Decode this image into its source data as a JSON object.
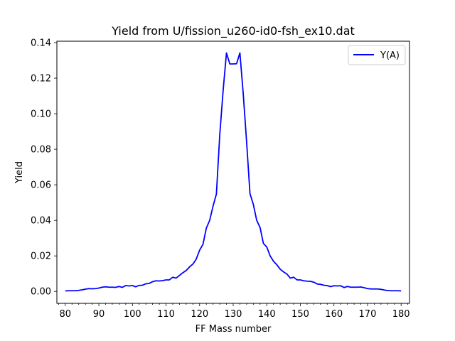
{
  "chart_data": {
    "type": "line",
    "title": "Yield from  U/fission_u260-id0-fsh_ex10.dat",
    "xlabel": "FF Mass number",
    "ylabel": "Yield",
    "xlim": [
      77.5,
      182.5
    ],
    "ylim": [
      -0.0067,
      0.1408
    ],
    "x_ticks": [
      80,
      90,
      100,
      110,
      120,
      130,
      140,
      150,
      160,
      170,
      180
    ],
    "y_ticks": [
      0.0,
      0.02,
      0.04,
      0.06,
      0.08,
      0.1,
      0.12,
      0.14
    ],
    "y_tick_labels": [
      "0.00",
      "0.02",
      "0.04",
      "0.06",
      "0.08",
      "0.10",
      "0.12",
      "0.14"
    ],
    "x_minor_step": 2,
    "grid": false,
    "legend_position": "upper right",
    "series": [
      {
        "name": "Y(A)",
        "color": "#0000ff",
        "x": [
          80,
          81,
          82,
          83,
          84,
          85,
          86,
          87,
          88,
          89,
          90,
          91,
          92,
          93,
          94,
          95,
          96,
          97,
          98,
          99,
          100,
          101,
          102,
          103,
          104,
          105,
          106,
          107,
          108,
          109,
          110,
          111,
          112,
          113,
          114,
          115,
          116,
          117,
          118,
          119,
          120,
          121,
          122,
          123,
          124,
          125,
          126,
          127,
          128,
          129,
          130,
          131,
          132,
          133,
          134,
          135,
          136,
          137,
          138,
          139,
          140,
          141,
          142,
          143,
          144,
          145,
          146,
          147,
          148,
          149,
          150,
          151,
          152,
          153,
          154,
          155,
          156,
          157,
          158,
          159,
          160,
          161,
          162,
          163,
          164,
          165,
          166,
          167,
          168,
          169,
          170,
          171,
          172,
          173,
          174,
          175,
          176,
          177,
          178,
          179,
          180
        ],
        "y": [
          0.0003,
          0.0004,
          0.0004,
          0.0004,
          0.0006,
          0.0009,
          0.0013,
          0.0016,
          0.0015,
          0.0016,
          0.0019,
          0.0024,
          0.0026,
          0.0024,
          0.0024,
          0.0023,
          0.0028,
          0.0023,
          0.0033,
          0.0031,
          0.0033,
          0.0026,
          0.0034,
          0.0035,
          0.0043,
          0.0045,
          0.0055,
          0.006,
          0.0059,
          0.0061,
          0.0065,
          0.0065,
          0.008,
          0.0075,
          0.009,
          0.0105,
          0.0118,
          0.0138,
          0.0154,
          0.0182,
          0.0232,
          0.0265,
          0.0356,
          0.04,
          0.048,
          0.0548,
          0.088,
          0.113,
          0.1342,
          0.128,
          0.128,
          0.1281,
          0.1342,
          0.111,
          0.084,
          0.055,
          0.049,
          0.04,
          0.036,
          0.027,
          0.025,
          0.02,
          0.017,
          0.015,
          0.0125,
          0.011,
          0.0098,
          0.0075,
          0.008,
          0.0065,
          0.0065,
          0.006,
          0.0058,
          0.0057,
          0.0052,
          0.0042,
          0.004,
          0.0035,
          0.0033,
          0.0027,
          0.0032,
          0.0031,
          0.0032,
          0.0022,
          0.0028,
          0.0024,
          0.0024,
          0.0024,
          0.0025,
          0.0021,
          0.0016,
          0.0014,
          0.0014,
          0.0014,
          0.0012,
          0.0008,
          0.0005,
          0.0004,
          0.0004,
          0.0004,
          0.0003
        ]
      }
    ]
  }
}
